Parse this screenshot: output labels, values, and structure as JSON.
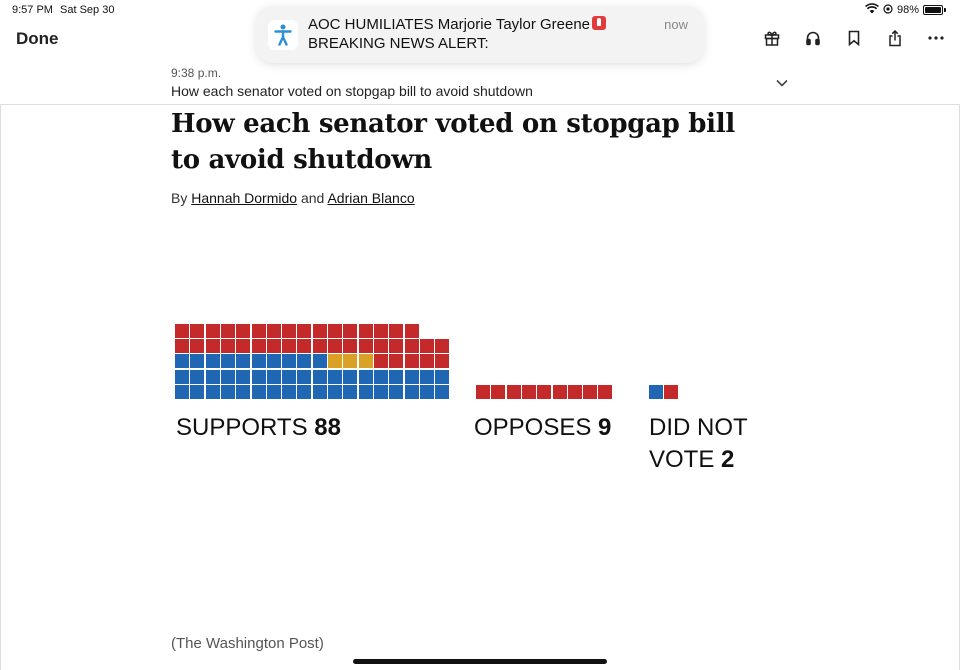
{
  "status": {
    "time": "9:57 PM",
    "date": "Sat Sep 30",
    "battery": "98%",
    "battery_level": 0.98
  },
  "nav": {
    "done_label": "Done",
    "icons": [
      "gift-icon",
      "headphones-icon",
      "bookmark-icon",
      "share-icon",
      "more-icon"
    ]
  },
  "notification": {
    "title": "AOC HUMILIATES Marjorie Taylor Greene",
    "body": "BREAKING NEWS ALERT:",
    "time": "now",
    "icon": "app-figure-icon"
  },
  "update": {
    "time": "9:38 p.m.",
    "headline": "How each senator voted on stopgap bill to avoid shutdown"
  },
  "article": {
    "headline": "How each senator voted on stopgap bill to avoid shutdown",
    "by": "By",
    "author1": "Hannah Dormido",
    "and": "and",
    "author2": "Adrian Blanco",
    "credit": "(The Washington Post)"
  },
  "colors": {
    "republican": "#c42a2a",
    "democrat": "#1f66b3",
    "independent": "#d9a227"
  },
  "chart_data": {
    "type": "waffle",
    "groups": [
      {
        "label": "SUPPORTS",
        "count": "88",
        "republican": 39,
        "independent": 3,
        "democrat": 46
      },
      {
        "label": "OPPOSES",
        "count": "9",
        "republican": 9,
        "independent": 0,
        "democrat": 0
      },
      {
        "label": "DID NOT VOTE",
        "count": "2",
        "republican": 1,
        "independent": 0,
        "democrat": 1
      }
    ]
  }
}
